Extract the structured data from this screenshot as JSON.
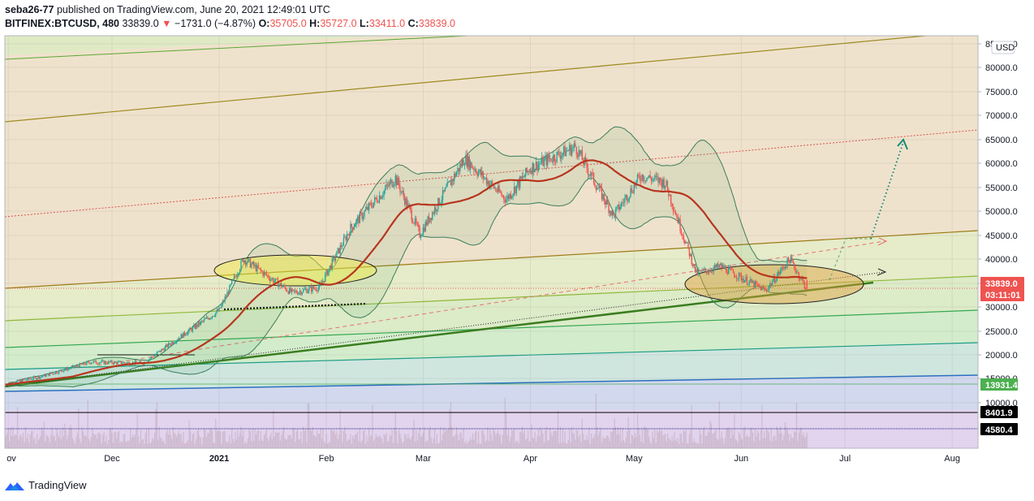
{
  "header": {
    "author": "seba26-77",
    "published_text": "published on TradingView.com, June 20, 2021 12:49:01 UTC",
    "symbol": "BITFINEX:BTCUSD, 480",
    "last_price": "33839.0",
    "change_arrow": "▼",
    "change": "−1731.0 (−4.87%)",
    "open_label": "O:",
    "open": "35705.0",
    "high_label": "H:",
    "high": "35727.0",
    "low_label": "L:",
    "low": "33411.0",
    "close_label": "C:",
    "close": "33839.0"
  },
  "footer": {
    "brand": "TradingView"
  },
  "chart_data": {
    "type": "candlestick",
    "currency": "USD",
    "x_ticks": [
      "ov",
      "Dec",
      "2021",
      "Feb",
      "Mar",
      "Apr",
      "May",
      "Jun",
      "Jul",
      "Aug"
    ],
    "y_ticks": [
      "85000.0",
      "80000.0",
      "75000.0",
      "70000.0",
      "65000.0",
      "60000.0",
      "55000.0",
      "50000.0",
      "45000.0",
      "40000.0",
      "35000.0",
      "30000.0",
      "25000.0",
      "20000.0",
      "15000.0",
      "10000.0"
    ],
    "price_tags": [
      {
        "value": "33839.0",
        "sub": "03:11:01",
        "color": "#ef5350"
      },
      {
        "value": "13931.4",
        "color": "#4caf50"
      },
      {
        "value": "8401.9",
        "color": "#000000"
      },
      {
        "value": "4580.4",
        "color": "#000000"
      }
    ],
    "approx_close_path": [
      {
        "date": "2020-10-31",
        "close": 13800
      },
      {
        "date": "2020-11-10",
        "close": 15300
      },
      {
        "date": "2020-11-25",
        "close": 18500
      },
      {
        "date": "2020-12-10",
        "close": 18200
      },
      {
        "date": "2020-12-20",
        "close": 23500
      },
      {
        "date": "2021-01-01",
        "close": 29300
      },
      {
        "date": "2021-01-08",
        "close": 40000
      },
      {
        "date": "2021-01-14",
        "close": 37000
      },
      {
        "date": "2021-01-22",
        "close": 33000
      },
      {
        "date": "2021-01-30",
        "close": 34200
      },
      {
        "date": "2021-02-08",
        "close": 46500
      },
      {
        "date": "2021-02-21",
        "close": 57000
      },
      {
        "date": "2021-02-28",
        "close": 45200
      },
      {
        "date": "2021-03-13",
        "close": 61000
      },
      {
        "date": "2021-03-25",
        "close": 52500
      },
      {
        "date": "2021-04-01",
        "close": 59000
      },
      {
        "date": "2021-04-14",
        "close": 63500
      },
      {
        "date": "2021-04-25",
        "close": 49000
      },
      {
        "date": "2021-05-03",
        "close": 57500
      },
      {
        "date": "2021-05-10",
        "close": 56000
      },
      {
        "date": "2021-05-19",
        "close": 37000
      },
      {
        "date": "2021-05-26",
        "close": 38500
      },
      {
        "date": "2021-06-08",
        "close": 33500
      },
      {
        "date": "2021-06-15",
        "close": 40000
      },
      {
        "date": "2021-06-20",
        "close": 33839
      }
    ]
  }
}
